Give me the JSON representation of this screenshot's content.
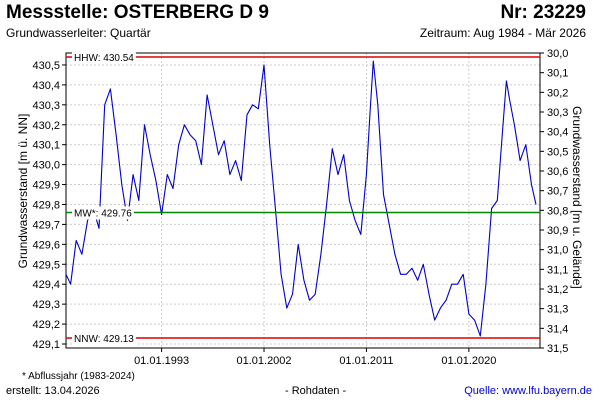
{
  "header": {
    "title": "Messstelle: OSTERBERG D 9",
    "number": "Nr: 23229",
    "subtitle": "Grundwasserleiter: Quartär",
    "period": "Zeitraum: Aug 1984 - Mär 2026"
  },
  "footer": {
    "footnote": "* Abflussjahr (1983-2024)",
    "created": "erstellt:  13.04.2026",
    "rawdata": "- Rohdaten -",
    "source": "Quelle: www.lfu.bayern.de"
  },
  "colors": {
    "series": "#0000cc",
    "extreme_lines": "#e00000",
    "mean_line": "#008800",
    "grid": "#cccccc",
    "source_link": "#0000cc"
  },
  "chart_data": {
    "type": "line",
    "xlabel": "",
    "ylabel": "Grundwasserstand [m ü. NN]",
    "ylabel_right": "Grundwasserstand [m u. Gelände]",
    "xlim": [
      1984.6,
      2026.25
    ],
    "ylim": [
      429.08,
      430.56
    ],
    "ylim_right": [
      31.5,
      30.0
    ],
    "x_ticks": [
      {
        "x": 1993.0,
        "label": "01.01.1993"
      },
      {
        "x": 2002.0,
        "label": "01.01.2002"
      },
      {
        "x": 2011.0,
        "label": "01.01.2011"
      },
      {
        "x": 2020.0,
        "label": "01.01.2020"
      }
    ],
    "y_ticks": [
      430.5,
      430.4,
      430.3,
      430.2,
      430.1,
      430.0,
      429.9,
      429.8,
      429.7,
      429.6,
      429.5,
      429.4,
      429.3,
      429.2,
      429.1
    ],
    "y_tick_labels": [
      "430,5",
      "430,4",
      "430,3",
      "430,2",
      "430,1",
      "430,0",
      "429,9",
      "429,8",
      "429,7",
      "429,6",
      "429,5",
      "429,4",
      "429,3",
      "429,2",
      "429,1"
    ],
    "y2_ticks": [
      30.0,
      30.1,
      30.2,
      30.3,
      30.4,
      30.5,
      30.6,
      30.7,
      30.8,
      30.9,
      31.0,
      31.1,
      31.2,
      31.3,
      31.4,
      31.5
    ],
    "y2_tick_labels": [
      "30,0",
      "30,1",
      "30,2",
      "30,3",
      "30,4",
      "30,5",
      "30,6",
      "30,7",
      "30,8",
      "30,9",
      "31,0",
      "31,1",
      "31,2",
      "31,3",
      "31,4",
      "31,5"
    ],
    "grid": true,
    "reference_lines": [
      {
        "label": "HHW: 430.54",
        "y": 430.54,
        "color": "#e00000"
      },
      {
        "label": "MW*: 429.76",
        "y": 429.76,
        "color": "#008800"
      },
      {
        "label": "NNW: 429.13",
        "y": 429.13,
        "color": "#e00000"
      }
    ],
    "series": [
      {
        "x": [
          1984.6,
          1985.0,
          1985.5,
          1986.0,
          1986.5,
          1987.0,
          1987.5,
          1988.0,
          1988.5,
          1989.0,
          1989.5,
          1990.0,
          1990.5,
          1991.0,
          1991.5,
          1992.0,
          1992.5,
          1993.0,
          1993.5,
          1994.0,
          1994.5,
          1995.0,
          1995.5,
          1996.0,
          1996.5,
          1997.0,
          1997.5,
          1998.0,
          1998.5,
          1999.0,
          1999.5,
          2000.0,
          2000.5,
          2001.0,
          2001.5,
          2002.0,
          2002.5,
          2003.0,
          2003.5,
          2004.0,
          2004.5,
          2005.0,
          2005.5,
          2006.0,
          2006.5,
          2007.0,
          2007.5,
          2008.0,
          2008.5,
          2009.0,
          2009.5,
          2010.0,
          2010.5,
          2011.0,
          2011.3,
          2011.6,
          2012.0,
          2012.5,
          2013.0,
          2013.5,
          2014.0,
          2014.5,
          2015.0,
          2015.5,
          2016.0,
          2016.5,
          2017.0,
          2017.5,
          2018.0,
          2018.5,
          2019.0,
          2019.5,
          2020.0,
          2020.5,
          2021.0,
          2021.5,
          2022.0,
          2022.5,
          2023.0,
          2023.3,
          2023.6,
          2024.0,
          2024.5,
          2025.0,
          2025.5,
          2025.9
        ],
        "values": [
          429.45,
          429.4,
          429.62,
          429.55,
          429.72,
          429.78,
          429.68,
          430.3,
          430.38,
          430.15,
          429.9,
          429.72,
          429.95,
          429.82,
          430.2,
          430.05,
          429.92,
          429.75,
          429.95,
          429.88,
          430.1,
          430.2,
          430.15,
          430.12,
          430.0,
          430.35,
          430.2,
          430.05,
          430.12,
          429.95,
          430.02,
          429.92,
          430.25,
          430.3,
          430.28,
          430.5,
          430.1,
          429.78,
          429.45,
          429.28,
          429.35,
          429.6,
          429.42,
          429.32,
          429.35,
          429.55,
          429.8,
          430.08,
          429.95,
          430.05,
          429.82,
          429.72,
          429.65,
          429.95,
          430.25,
          430.52,
          430.3,
          429.85,
          429.7,
          429.55,
          429.45,
          429.45,
          429.48,
          429.42,
          429.5,
          429.35,
          429.22,
          429.28,
          429.32,
          429.4,
          429.4,
          429.45,
          429.25,
          429.22,
          429.14,
          429.4,
          429.78,
          429.82,
          430.2,
          430.42,
          430.32,
          430.2,
          430.02,
          430.1,
          429.9,
          429.8
        ]
      }
    ]
  }
}
